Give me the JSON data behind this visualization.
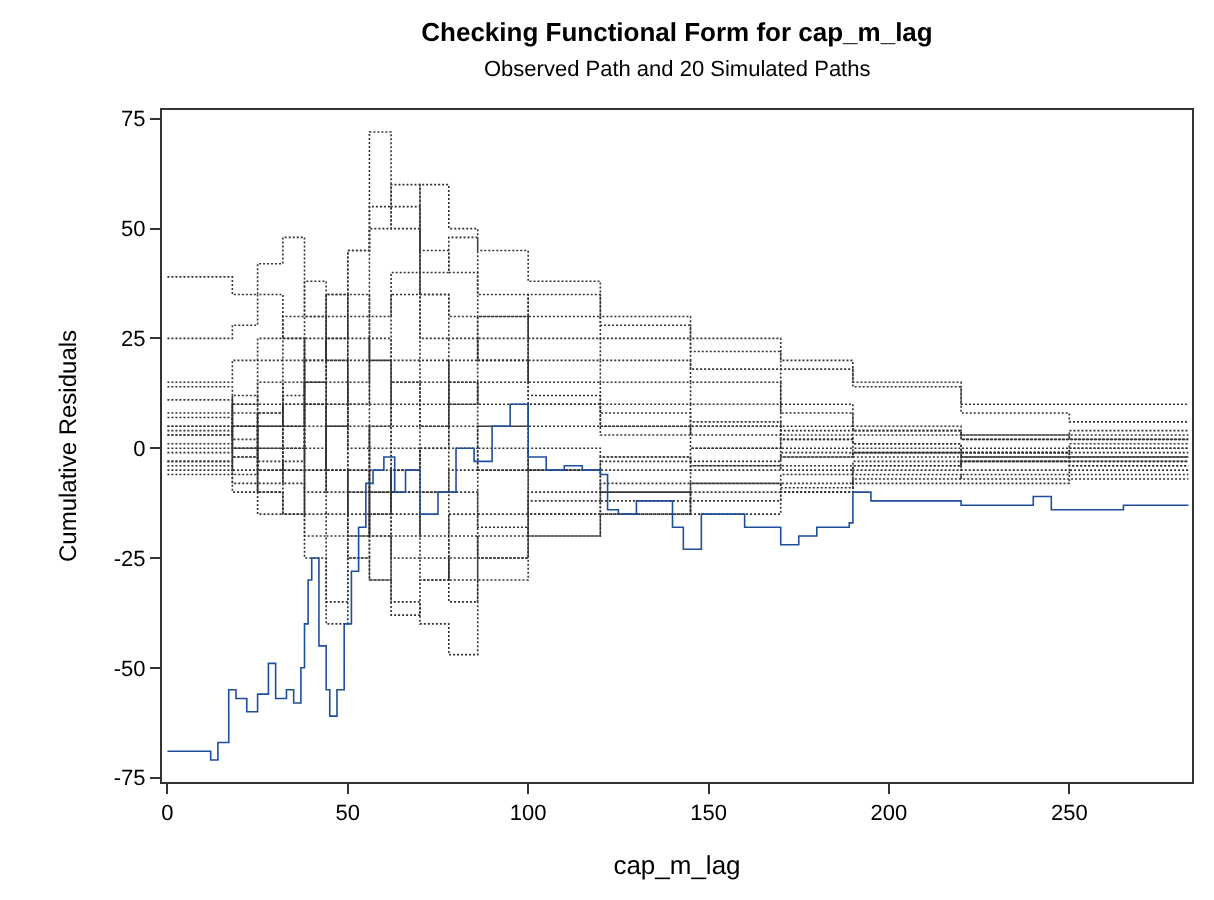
{
  "chart_data": {
    "type": "step",
    "title": "Checking Functional Form for cap_m_lag",
    "subtitle": "Observed Path and 20 Simulated Paths",
    "xlabel": "cap_m_lag",
    "ylabel": "Cumulative Residuals",
    "xlim": [
      -1.5,
      284
    ],
    "ylim": [
      -76,
      77
    ],
    "xticks": [
      0,
      50,
      100,
      150,
      200,
      250
    ],
    "yticks": [
      -75,
      -50,
      -25,
      0,
      25,
      50,
      75
    ],
    "line_style": "dotted",
    "x": [
      0,
      12,
      18,
      25,
      32,
      38,
      44,
      50,
      56,
      62,
      70,
      78,
      86,
      100,
      120,
      145,
      170,
      190,
      220,
      250,
      283
    ],
    "series": [
      {
        "color": "#333333",
        "values": [
          39,
          39,
          35,
          42,
          48,
          30,
          20,
          45,
          72,
          55,
          45,
          40,
          35,
          30,
          28,
          22,
          18,
          14,
          10,
          10,
          10
        ]
      },
      {
        "color": "#333333",
        "values": [
          25,
          25,
          28,
          35,
          25,
          15,
          5,
          10,
          20,
          35,
          60,
          50,
          45,
          38,
          30,
          25,
          20,
          15,
          8,
          6,
          6
        ]
      },
      {
        "color": "#333333",
        "values": [
          15,
          15,
          20,
          25,
          30,
          38,
          20,
          -5,
          -20,
          -35,
          -40,
          -47,
          -30,
          -20,
          -15,
          -10,
          -8,
          -5,
          -3,
          -2,
          -2
        ]
      },
      {
        "color": "#333333",
        "values": [
          14,
          14,
          5,
          -5,
          0,
          10,
          25,
          30,
          50,
          60,
          40,
          48,
          30,
          20,
          15,
          10,
          5,
          4,
          3,
          4,
          4
        ]
      },
      {
        "color": "#333333",
        "values": [
          11,
          11,
          0,
          -10,
          -15,
          -25,
          -40,
          -20,
          -5,
          -10,
          -20,
          -35,
          -25,
          -15,
          -12,
          -8,
          -6,
          -4,
          -3,
          -3,
          -3
        ]
      },
      {
        "color": "#333333",
        "values": [
          8,
          8,
          12,
          5,
          10,
          20,
          35,
          25,
          10,
          0,
          -10,
          -5,
          5,
          10,
          8,
          5,
          2,
          1,
          0,
          1,
          1
        ]
      },
      {
        "color": "#333333",
        "values": [
          7,
          7,
          2,
          8,
          15,
          5,
          -10,
          -25,
          -30,
          -20,
          -10,
          -20,
          -25,
          -10,
          -5,
          -4,
          -2,
          -1,
          -2,
          -1,
          -1
        ]
      },
      {
        "color": "#333333",
        "values": [
          5,
          5,
          10,
          15,
          5,
          -5,
          10,
          20,
          25,
          15,
          20,
          10,
          15,
          25,
          20,
          15,
          8,
          5,
          3,
          2,
          2
        ]
      },
      {
        "color": "#333333",
        "values": [
          4,
          4,
          -2,
          -8,
          -3,
          15,
          30,
          35,
          20,
          10,
          5,
          0,
          -5,
          -15,
          -8,
          -5,
          -4,
          -3,
          -5,
          -4,
          -4
        ]
      },
      {
        "color": "#333333",
        "values": [
          3,
          3,
          8,
          0,
          -5,
          -15,
          -20,
          -5,
          5,
          15,
          10,
          20,
          30,
          15,
          5,
          0,
          -2,
          -1,
          -1,
          0,
          0
        ]
      },
      {
        "color": "#333333",
        "values": [
          1,
          1,
          -5,
          5,
          12,
          25,
          15,
          5,
          -10,
          -25,
          -30,
          -25,
          -15,
          -5,
          -10,
          -15,
          -10,
          -7,
          -6,
          -5,
          -5
        ]
      },
      {
        "color": "#333333",
        "values": [
          -1,
          -1,
          5,
          10,
          0,
          -10,
          5,
          15,
          30,
          40,
          25,
          15,
          5,
          -5,
          -3,
          0,
          2,
          0,
          -2,
          -2,
          -2
        ]
      },
      {
        "color": "#333333",
        "values": [
          -3,
          -3,
          0,
          -10,
          -15,
          -5,
          10,
          0,
          -15,
          -5,
          5,
          15,
          10,
          5,
          3,
          5,
          3,
          1,
          -1,
          -3,
          -3
        ]
      },
      {
        "color": "#333333",
        "values": [
          -4,
          -4,
          -10,
          -5,
          5,
          20,
          25,
          10,
          0,
          -15,
          -25,
          -30,
          -20,
          -12,
          -10,
          -8,
          -9,
          -6,
          -7,
          -6,
          -6
        ]
      },
      {
        "color": "#333333",
        "values": [
          -5,
          -5,
          -8,
          -15,
          -5,
          10,
          -5,
          -20,
          -10,
          5,
          15,
          5,
          0,
          -5,
          -2,
          -4,
          -5,
          -4,
          -2,
          -2,
          -2
        ]
      },
      {
        "color": "#333333",
        "values": [
          -6,
          -6,
          -2,
          5,
          10,
          0,
          -15,
          -10,
          5,
          20,
          35,
          30,
          20,
          10,
          5,
          3,
          0,
          -1,
          -1,
          0,
          0
        ]
      },
      {
        "color": "#333333",
        "values": [
          5,
          5,
          0,
          8,
          20,
          30,
          35,
          45,
          55,
          50,
          35,
          25,
          20,
          12,
          10,
          6,
          4,
          3,
          2,
          3,
          3
        ]
      },
      {
        "color": "#333333",
        "values": [
          0,
          0,
          5,
          -3,
          -8,
          -20,
          -35,
          -25,
          -15,
          -5,
          0,
          -10,
          -18,
          -20,
          -15,
          -12,
          -10,
          -8,
          -8,
          -7,
          -7
        ]
      },
      {
        "color": "#333333",
        "values": [
          3,
          3,
          10,
          20,
          25,
          10,
          -5,
          -15,
          -30,
          -38,
          -30,
          -15,
          -5,
          0,
          -2,
          -3,
          -1,
          -2,
          -3,
          -4,
          -4
        ]
      },
      {
        "color": "#333333",
        "values": [
          -3,
          -3,
          -6,
          0,
          5,
          15,
          5,
          -10,
          -20,
          -10,
          0,
          10,
          25,
          35,
          25,
          18,
          10,
          4,
          2,
          2,
          2
        ]
      },
      {
        "color": "#1f4e9c",
        "line_style": "solid",
        "x": [
          0,
          12,
          14,
          17,
          19,
          22,
          25,
          28,
          30,
          33,
          35,
          37,
          38,
          39,
          40,
          42,
          44,
          45,
          47,
          49,
          51,
          53,
          55,
          57,
          60,
          63,
          66,
          70,
          75,
          80,
          85,
          90,
          95,
          100,
          105,
          110,
          115,
          120,
          122,
          125,
          130,
          140,
          143,
          148,
          155,
          160,
          165,
          170,
          175,
          180,
          189,
          190,
          195,
          205,
          220,
          230,
          240,
          245,
          265,
          283
        ],
        "values": [
          -69,
          -71,
          -67,
          -55,
          -57,
          -60,
          -56,
          -49,
          -57,
          -55,
          -58,
          -50,
          -40,
          -30,
          -25,
          -45,
          -55,
          -61,
          -55,
          -40,
          -28,
          -18,
          -8,
          -5,
          -2,
          -10,
          -5,
          -15,
          -10,
          0,
          -3,
          5,
          10,
          -2,
          -5,
          -4,
          -5,
          -6,
          -14,
          -15,
          -12,
          -18,
          -23,
          -15,
          -15,
          -18,
          -18,
          -22,
          -20,
          -18,
          -17,
          -10,
          -12,
          -12,
          -13,
          -13,
          -11,
          -14,
          -13,
          -13
        ]
      }
    ]
  }
}
